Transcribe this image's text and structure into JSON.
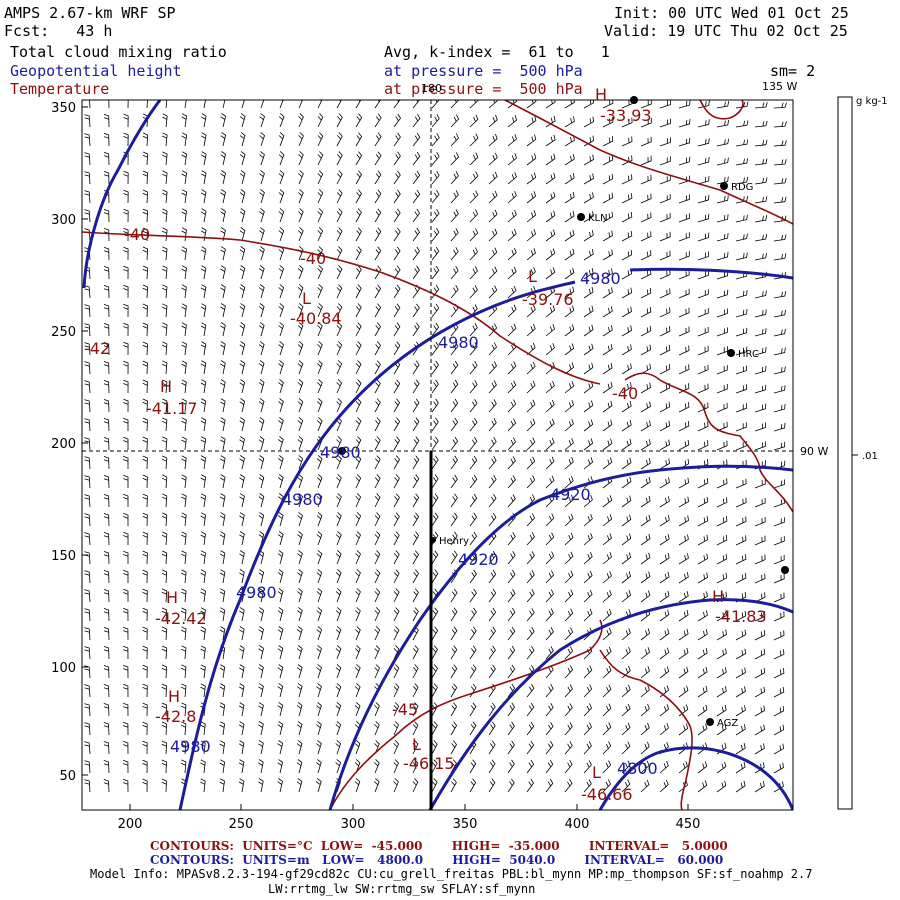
{
  "header": {
    "model": "AMPS 2.67-km WRF SP",
    "fcst": "Fcst:   43 h",
    "init": "Init: 00 UTC Wed 01 Oct 25",
    "valid": "Valid: 19 UTC Thu 02 Oct 25",
    "field1": "Total cloud mixing ratio",
    "field2": "Geopotential height",
    "field3": "Temperature",
    "avg": "Avg, k-index =  61 to   1",
    "press1": "at pressure =  500 hPa",
    "press2": "at pressure =  500 hPa",
    "smooth": "sm= 2"
  },
  "colorbar": {
    "units": "g kg-1",
    "tick": ".01"
  },
  "meridian_labels": {
    "top180": "180",
    "m135": "135 W",
    "m90": "90 W"
  },
  "axes": {
    "x_ticks": [
      "200",
      "250",
      "300",
      "350",
      "400",
      "450"
    ],
    "y_ticks": [
      "350",
      "300",
      "250",
      "200",
      "150",
      "100",
      "50"
    ]
  },
  "stations": [
    {
      "name": "KLN"
    },
    {
      "name": "RDG"
    },
    {
      "name": "HRC"
    },
    {
      "name": "Henry"
    },
    {
      "name": "AGZ"
    }
  ],
  "height_labels": [
    "4980",
    "4980",
    "4980",
    "4980",
    "4980",
    "4980",
    "4920",
    "4920",
    "4800"
  ],
  "temp_labels": [
    "-40",
    "-40",
    "-40",
    "-42",
    "-45",
    "-33.93",
    "-39.76",
    "-40.84",
    "-41.17",
    "-42.42",
    "-42.8",
    "-46.15",
    "-46.66",
    "-41.83"
  ],
  "extrema": [
    "H",
    "H",
    "H",
    "H",
    "L",
    "L",
    "L",
    "L",
    "H"
  ],
  "footer": {
    "temp_line": "CONTOURS:  UNITS=°C  LOW=  -45.000       HIGH=  -35.000       INTERVAL=   5.0000",
    "hgt_line": "CONTOURS:  UNITS=m   LOW=   4800.0       HIGH=  5040.0       INTERVAL=   60.000",
    "model_info1": "Model Info: MPASv8.2.3-194-gf29cd82c CU:cu_grell_freitas PBL:bl_mynn MP:mp_thompson SF:sf_noahmp 2.7",
    "model_info2": "LW:rrtmg_lw SW:rrtmg_sw SFLAY:sf_mynn"
  },
  "colors": {
    "height": "#1c1c9c",
    "temperature": "#8b1010",
    "barb": "#000000"
  }
}
